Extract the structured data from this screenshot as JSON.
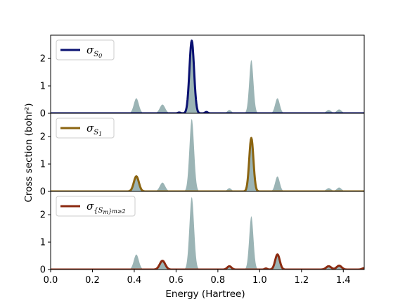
{
  "chart_data": {
    "type": "line",
    "xlabel": "Energy (Hartree)",
    "ylabel": "Cross section (bohr²)",
    "xlim": [
      0.0,
      1.5
    ],
    "xticks": [
      0.0,
      0.2,
      0.4,
      0.6,
      0.8,
      1.0,
      1.2,
      1.4
    ],
    "xtick_labels": [
      "0.0",
      "0.2",
      "0.4",
      "0.6",
      "0.8",
      "1.0",
      "1.2",
      "1.4"
    ],
    "ylim": [
      0,
      2.85
    ],
    "yticks": [
      0,
      1,
      2
    ],
    "ytick_labels": [
      "0",
      "1",
      "2"
    ],
    "grid": false,
    "legend_position": "top-left",
    "background_total": {
      "fill_color": "#8aa7a8",
      "peaks": [
        {
          "x": 0.41,
          "y": 0.55,
          "w": 0.012
        },
        {
          "x": 0.535,
          "y": 0.32,
          "w": 0.013
        },
        {
          "x": 0.675,
          "y": 2.65,
          "w": 0.011
        },
        {
          "x": 0.855,
          "y": 0.12,
          "w": 0.01
        },
        {
          "x": 0.96,
          "y": 1.95,
          "w": 0.01
        },
        {
          "x": 1.085,
          "y": 0.55,
          "w": 0.011
        },
        {
          "x": 1.33,
          "y": 0.12,
          "w": 0.012
        },
        {
          "x": 1.38,
          "y": 0.14,
          "w": 0.012
        }
      ]
    },
    "panels": [
      {
        "legend": {
          "symbol": "σ",
          "subscript": "S",
          "subsubscript": "0",
          "extra": ""
        },
        "color": "#0a1172",
        "peaks": [
          {
            "x": 0.675,
            "y": 2.65,
            "w": 0.011
          },
          {
            "x": 0.745,
            "y": 0.05,
            "w": 0.006
          },
          {
            "x": 0.615,
            "y": 0.03,
            "w": 0.006
          }
        ]
      },
      {
        "legend": {
          "symbol": "σ",
          "subscript": "S",
          "subsubscript": "1",
          "extra": ""
        },
        "color": "#8b6410",
        "peaks": [
          {
            "x": 0.41,
            "y": 0.55,
            "w": 0.012
          },
          {
            "x": 0.96,
            "y": 1.95,
            "w": 0.01
          }
        ]
      },
      {
        "legend": {
          "symbol": "σ",
          "subscript": "{S",
          "subsubscript": "m",
          "extra": "}m≥2"
        },
        "color": "#8b2a10",
        "peaks": [
          {
            "x": 0.535,
            "y": 0.32,
            "w": 0.013
          },
          {
            "x": 0.855,
            "y": 0.12,
            "w": 0.01
          },
          {
            "x": 1.085,
            "y": 0.55,
            "w": 0.011
          },
          {
            "x": 1.33,
            "y": 0.12,
            "w": 0.012
          },
          {
            "x": 1.38,
            "y": 0.14,
            "w": 0.012
          },
          {
            "x": 1.03,
            "y": 0.04,
            "w": 0.006
          },
          {
            "x": 1.5,
            "y": 0.05,
            "w": 0.01
          }
        ]
      }
    ]
  }
}
